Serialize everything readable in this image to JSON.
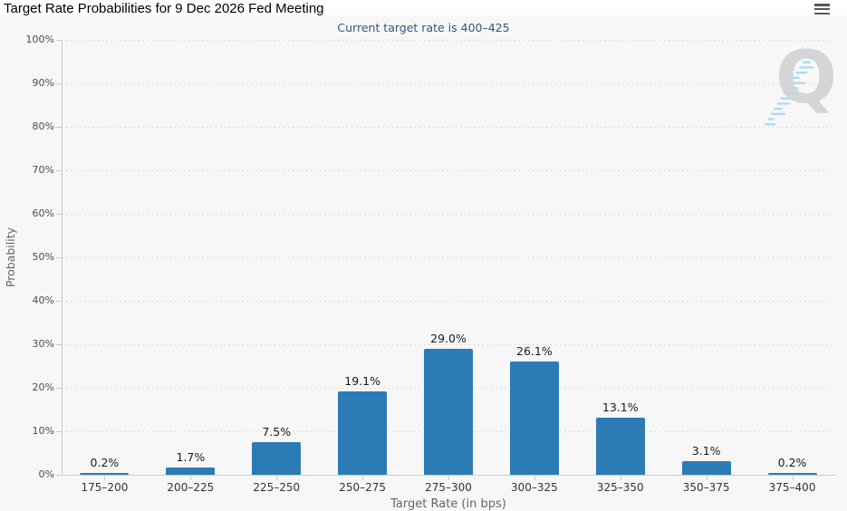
{
  "header": {
    "title": "Target Rate Probabilities for 9 Dec 2026 Fed Meeting"
  },
  "chart_data": {
    "type": "bar",
    "title": "Target Rate Probabilities for 9 Dec 2026 Fed Meeting",
    "subtitle": "Current target rate is 400–425",
    "categories": [
      "175–200",
      "200–225",
      "225–250",
      "250–275",
      "275–300",
      "300–325",
      "325–350",
      "350–375",
      "375–400"
    ],
    "values": [
      0.2,
      1.7,
      7.5,
      19.1,
      29.0,
      26.1,
      13.1,
      3.1,
      0.2
    ],
    "data_labels": [
      "0.2%",
      "1.7%",
      "7.5%",
      "19.1%",
      "29.0%",
      "26.1%",
      "13.1%",
      "3.1%",
      "0.2%"
    ],
    "xlabel": "Target Rate (in bps)",
    "ylabel": "Probability",
    "ylim": [
      0,
      100
    ],
    "ytick_step": 10,
    "ytick_labels": [
      "0%",
      "10%",
      "20%",
      "30%",
      "40%",
      "50%",
      "60%",
      "70%",
      "80%",
      "90%",
      "100%"
    ],
    "grid": "horizontal-dotted",
    "legend": "none",
    "bar_color": "#2d7bb5"
  },
  "watermark": {
    "letter": "Q"
  },
  "colors": {
    "background": "#f7f7f7",
    "header_strip": "#ffffff",
    "title": "#000000",
    "subtitle": "#35567a",
    "bar": "#2d7bb5",
    "grid": "#c9c9c9",
    "axis": "#cccccc",
    "tick_label": "#4d4d4d",
    "axis_title": "#666666",
    "menu_icon": "#595959",
    "watermark_q": "#d2d2d2",
    "watermark_dash": "#93d4ef"
  }
}
